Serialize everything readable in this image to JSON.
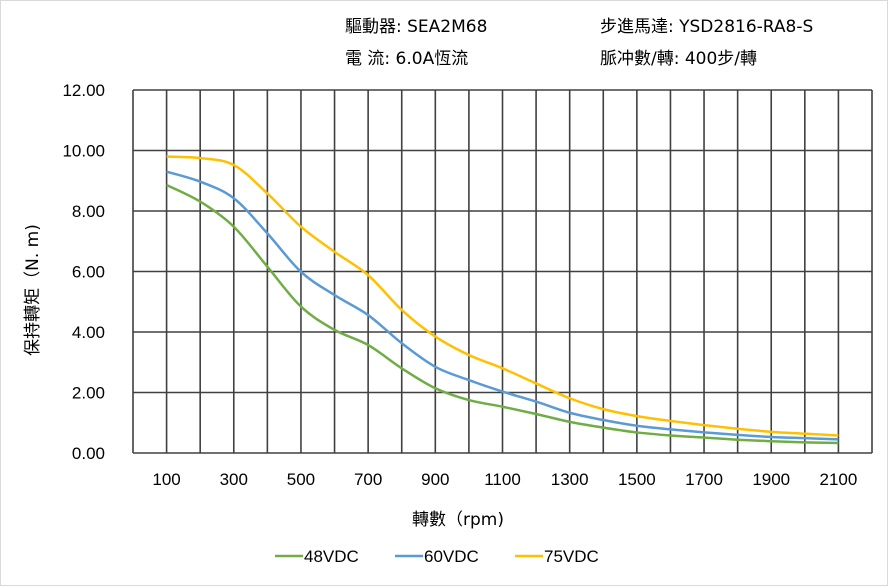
{
  "header": {
    "driver": "驅動器:  SEA2M68",
    "current": "電    流:  6.0A恆流",
    "motor": "步進馬達:  YSD2816-RA8-S",
    "pulses": "脈冲數/轉:  400步/轉"
  },
  "chart_data": {
    "type": "line",
    "title": "",
    "xlabel": "轉數（rpm)",
    "ylabel": "保持轉矩（N. m)",
    "xlim": [
      0,
      2200
    ],
    "ylim": [
      0,
      12
    ],
    "grid": true,
    "legend_position": "bottom",
    "x_ticks": [
      "100",
      "300",
      "500",
      "700",
      "900",
      "1100",
      "1300",
      "1500",
      "1700",
      "1900",
      "2100"
    ],
    "y_ticks": [
      "0.00",
      "2.00",
      "4.00",
      "6.00",
      "8.00",
      "10.00",
      "12.00"
    ],
    "x": [
      100,
      200,
      300,
      400,
      500,
      600,
      700,
      800,
      900,
      1000,
      1100,
      1200,
      1300,
      1400,
      1500,
      1600,
      1700,
      1800,
      1900,
      2000,
      2100
    ],
    "series": [
      {
        "name": "48VDC",
        "color": "#70ad47",
        "values": [
          8.86,
          8.31,
          7.48,
          6.16,
          4.84,
          4.07,
          3.57,
          2.8,
          2.14,
          1.75,
          1.53,
          1.29,
          1.03,
          0.84,
          0.68,
          0.58,
          0.51,
          0.44,
          0.39,
          0.35,
          0.33
        ]
      },
      {
        "name": "60VDC",
        "color": "#5b9bd5",
        "values": [
          9.3,
          8.97,
          8.42,
          7.26,
          5.99,
          5.22,
          4.56,
          3.63,
          2.85,
          2.41,
          2.03,
          1.7,
          1.33,
          1.09,
          0.9,
          0.78,
          0.68,
          0.6,
          0.53,
          0.49,
          0.45
        ]
      },
      {
        "name": "75VDC",
        "color": "#ffc000",
        "values": [
          9.8,
          9.75,
          9.52,
          8.58,
          7.48,
          6.65,
          5.88,
          4.73,
          3.85,
          3.24,
          2.8,
          2.3,
          1.81,
          1.45,
          1.22,
          1.06,
          0.92,
          0.8,
          0.7,
          0.64,
          0.58
        ]
      }
    ]
  }
}
